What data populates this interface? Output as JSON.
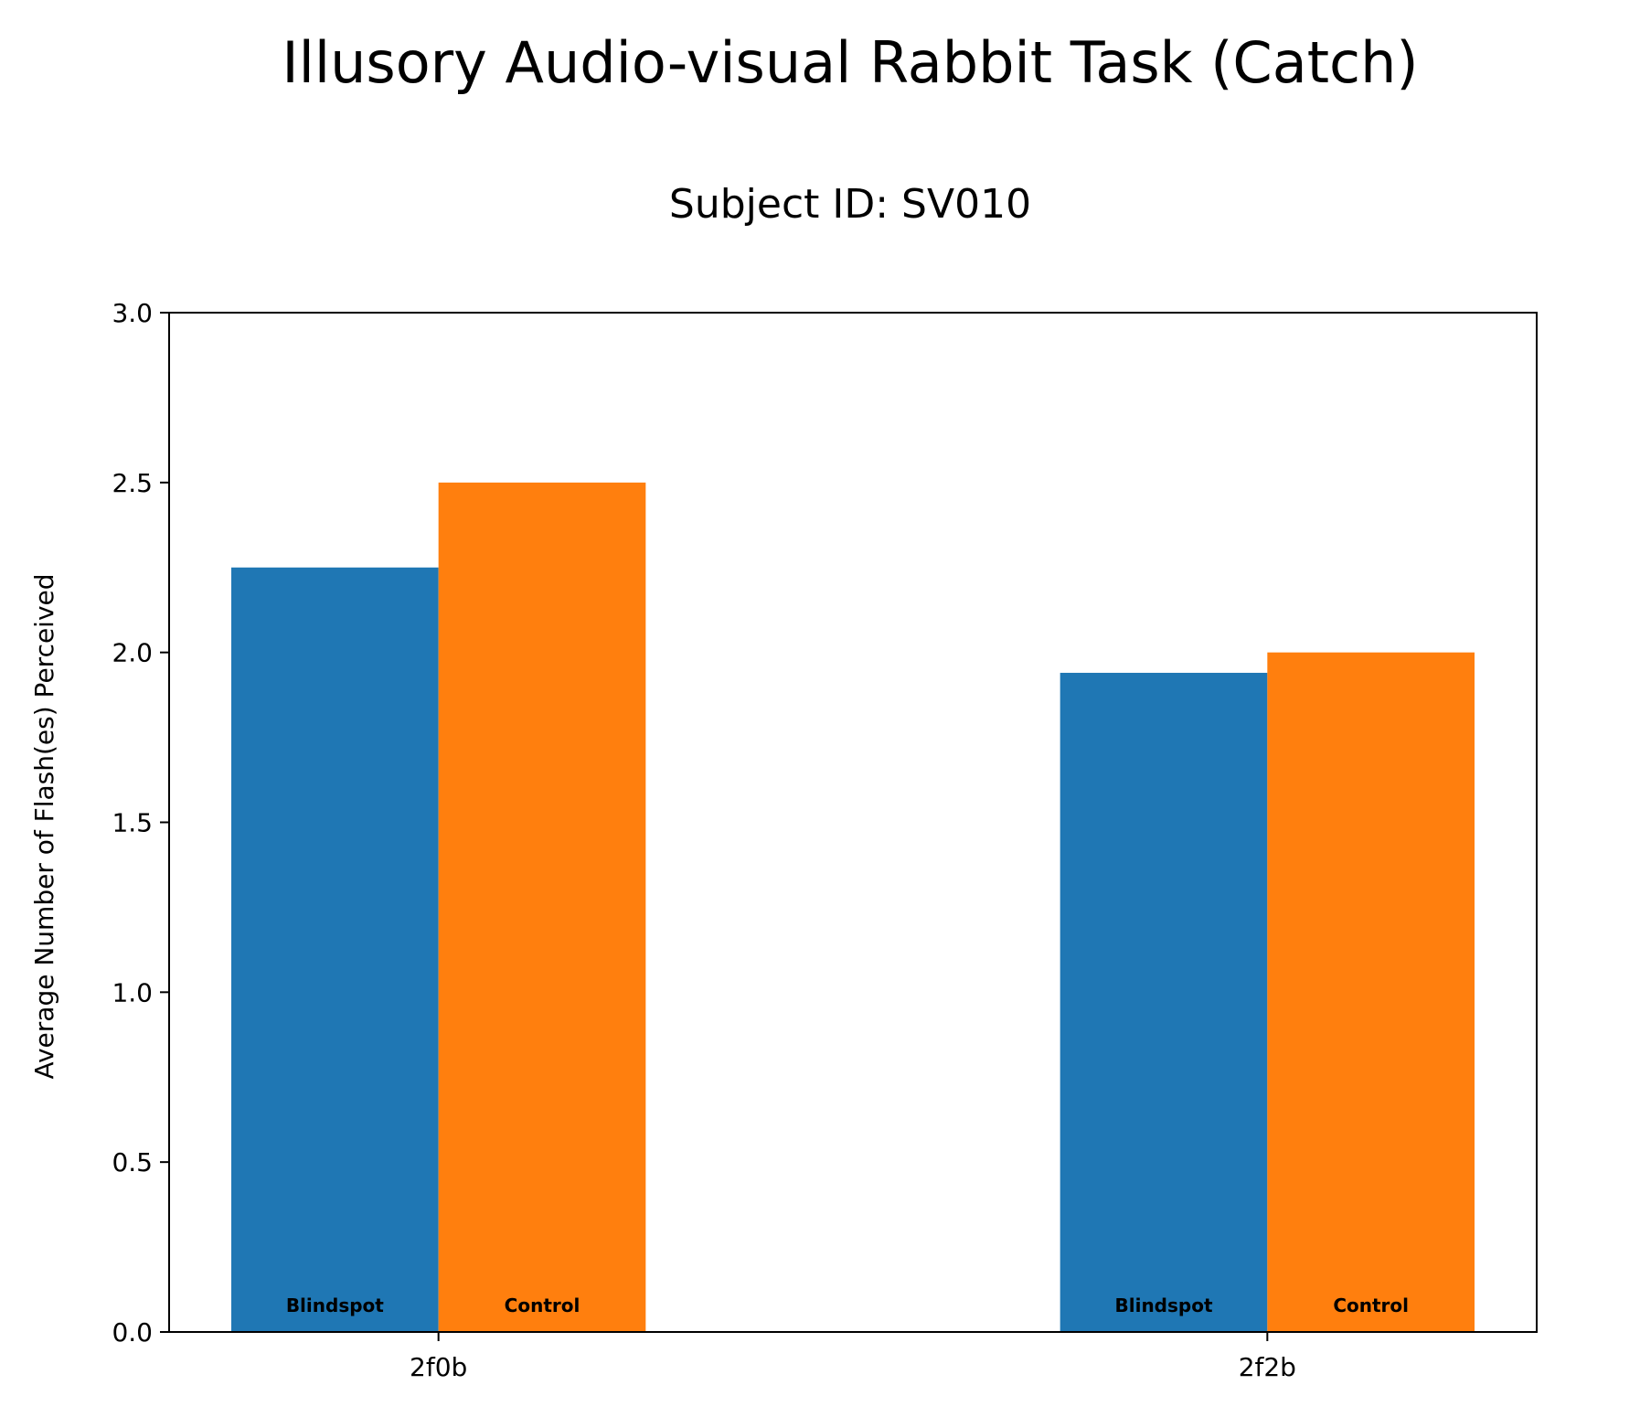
{
  "chart_data": {
    "type": "bar",
    "title": "Illusory Audio-visual Rabbit Task (Catch)",
    "subtitle": "Subject ID: SV010",
    "xlabel": "",
    "ylabel": "Average Number of Flash(es) Perceived",
    "categories": [
      "2f0b",
      "2f2b"
    ],
    "series": [
      {
        "name": "Blindspot",
        "color": "#1f77b4",
        "values": [
          2.25,
          1.94
        ]
      },
      {
        "name": "Control",
        "color": "#ff7f0e",
        "values": [
          2.5,
          2.0
        ]
      }
    ],
    "ylim": [
      0,
      3
    ],
    "yticks": [
      "0.0",
      "0.5",
      "1.0",
      "1.5",
      "2.0",
      "2.5",
      "3.0"
    ],
    "ytick_values": [
      0,
      0.5,
      1.0,
      1.5,
      2.0,
      2.5,
      3.0
    ],
    "grid": false,
    "legend": "none"
  }
}
